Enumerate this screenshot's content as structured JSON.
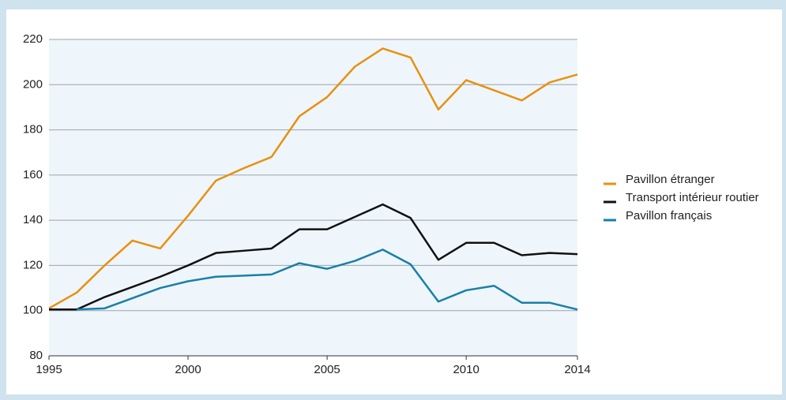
{
  "chart_data": {
    "type": "line",
    "x": [
      1995,
      1996,
      1997,
      1998,
      1999,
      2000,
      2001,
      2002,
      2003,
      2004,
      2005,
      2006,
      2007,
      2008,
      2009,
      2010,
      2011,
      2012,
      2013,
      2014
    ],
    "series": [
      {
        "name": "Pavillon étranger",
        "color": "#e8900f",
        "values": [
          101,
          108,
          120,
          131,
          127.5,
          142,
          157.5,
          163,
          168,
          186,
          194.5,
          208,
          216,
          212,
          189,
          202,
          197.5,
          193,
          201,
          204.5
        ]
      },
      {
        "name": "Transport intérieur routier",
        "color": "#111111",
        "values": [
          100.5,
          100.5,
          106,
          110.5,
          115,
          120,
          125.5,
          126.5,
          127.5,
          136,
          136,
          141.5,
          147,
          141,
          122.5,
          130,
          130,
          124.5,
          125.5,
          125
        ]
      },
      {
        "name": "Pavillon français",
        "color": "#1a7fa8",
        "values": [
          null,
          100.5,
          101,
          105.5,
          110,
          113,
          115,
          115.5,
          116,
          121,
          118.5,
          122,
          127,
          120.5,
          104,
          109,
          111,
          103.5,
          103.5,
          100.5
        ]
      }
    ],
    "xlim": [
      1995,
      2014
    ],
    "xticks": [
      1995,
      2000,
      2005,
      2010,
      2014
    ],
    "ylim": [
      80,
      220
    ],
    "yticks": [
      80,
      100,
      120,
      140,
      160,
      180,
      200,
      220
    ],
    "grid": true,
    "legend": "right"
  }
}
